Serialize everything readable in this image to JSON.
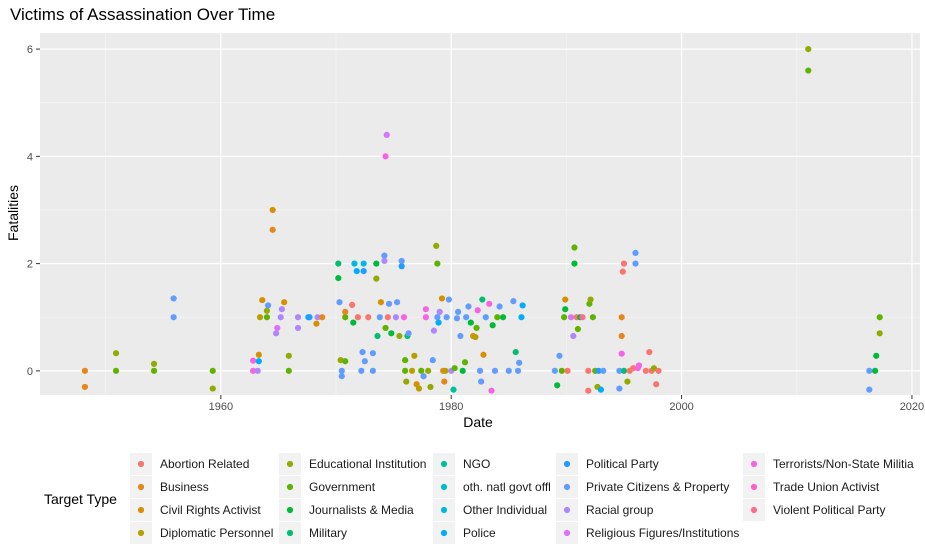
{
  "chart_data": {
    "type": "scatter",
    "title": "Victims of Assassination Over Time",
    "xlabel": "Date",
    "ylabel": "Fatalities",
    "xlim": [
      1944.3,
      2020.7
    ],
    "ylim": [
      -0.45,
      6.3
    ],
    "x_ticks": [
      1960,
      1980,
      2000,
      2020
    ],
    "y_ticks": [
      0,
      2,
      4,
      6
    ],
    "grid": true,
    "legend_position": "bottom",
    "legend_title": "Target Type",
    "categories": [
      {
        "name": "Abortion Related",
        "color": "#F8766D"
      },
      {
        "name": "Business",
        "color": "#E6861C"
      },
      {
        "name": "Civil Rights Activist",
        "color": "#D89000"
      },
      {
        "name": "Diplomatic Personnel",
        "color": "#B79F00"
      },
      {
        "name": "Educational Institution",
        "color": "#93AA00"
      },
      {
        "name": "Government",
        "color": "#5EB300"
      },
      {
        "name": "Journalists & Media",
        "color": "#00BA38"
      },
      {
        "name": "Military",
        "color": "#00BF74"
      },
      {
        "name": "NGO",
        "color": "#00C19F"
      },
      {
        "name": "oth. natl govt offl",
        "color": "#00BFC4"
      },
      {
        "name": "Other Individual",
        "color": "#00B9E3"
      },
      {
        "name": "Police",
        "color": "#00ADFA"
      },
      {
        "name": "Political Party",
        "color": "#1E9EFF"
      },
      {
        "name": "Private Citizens & Property",
        "color": "#619CFF"
      },
      {
        "name": "Racial group",
        "color": "#AE87FF"
      },
      {
        "name": "Religious Figures/Institutions",
        "color": "#DB72FB"
      },
      {
        "name": "Terrorists/Non-State Militia",
        "color": "#F564E3"
      },
      {
        "name": "Trade Union Activist",
        "color": "#FF61C3"
      },
      {
        "name": "Violent Political Party",
        "color": "#FF6C91"
      }
    ],
    "points": [
      [
        1948.2,
        0.0,
        "Business"
      ],
      [
        1948.2,
        -0.3,
        "Business"
      ],
      [
        1950.9,
        0.0,
        "Government"
      ],
      [
        1950.9,
        0.33,
        "Educational Institution"
      ],
      [
        1954.2,
        0.0,
        "Government"
      ],
      [
        1954.2,
        0.13,
        "Educational Institution"
      ],
      [
        1955.9,
        1.0,
        "Private Citizens & Property"
      ],
      [
        1955.9,
        1.35,
        "Private Citizens & Property"
      ],
      [
        1959.3,
        0.0,
        "Government"
      ],
      [
        1959.3,
        -0.33,
        "Educational Institution"
      ],
      [
        1962.8,
        0.0,
        "Terrorists/Non-State Militia"
      ],
      [
        1962.8,
        0.19,
        "Terrorists/Non-State Militia"
      ],
      [
        1963.2,
        0.0,
        "Racial group"
      ],
      [
        1963.3,
        0.18,
        "Police"
      ],
      [
        1963.3,
        0.3,
        "Civil Rights Activist"
      ],
      [
        1963.4,
        1.0,
        "Diplomatic Personnel"
      ],
      [
        1963.6,
        1.32,
        "Civil Rights Activist"
      ],
      [
        1964.0,
        1.0,
        "Government"
      ],
      [
        1964.0,
        1.12,
        "Educational Institution"
      ],
      [
        1964.1,
        1.22,
        "Private Citizens & Property"
      ],
      [
        1964.5,
        3.0,
        "Civil Rights Activist"
      ],
      [
        1964.5,
        2.63,
        "Business"
      ],
      [
        1964.8,
        0.7,
        "Racial group"
      ],
      [
        1964.9,
        0.8,
        "Religious Figures/Institutions"
      ],
      [
        1965.2,
        1.0,
        "Racial group"
      ],
      [
        1965.3,
        1.15,
        "Racial group"
      ],
      [
        1965.5,
        1.28,
        "Civil Rights Activist"
      ],
      [
        1965.9,
        0.0,
        "Government"
      ],
      [
        1965.9,
        0.28,
        "Educational Institution"
      ],
      [
        1966.7,
        0.8,
        "Racial group"
      ],
      [
        1966.7,
        1.0,
        "Racial group"
      ],
      [
        1967.6,
        1.0,
        "Police"
      ],
      [
        1967.7,
        1.0,
        "Political Party"
      ],
      [
        1968.3,
        0.88,
        "Civil Rights Activist"
      ],
      [
        1968.4,
        1.0,
        "Racial group"
      ],
      [
        1968.8,
        1.0,
        "Business"
      ],
      [
        1970.2,
        2.0,
        "Military"
      ],
      [
        1970.2,
        1.73,
        "Journalists & Media"
      ],
      [
        1970.3,
        1.28,
        "Private Citizens & Property"
      ],
      [
        1970.4,
        0.2,
        "Educational Institution"
      ],
      [
        1970.5,
        0.0,
        "Private Citizens & Property"
      ],
      [
        1970.5,
        -0.1,
        "Private Citizens & Property"
      ],
      [
        1970.8,
        0.18,
        "Government"
      ],
      [
        1970.8,
        1.0,
        "Government"
      ],
      [
        1970.8,
        1.1,
        "Business"
      ],
      [
        1971.4,
        1.23,
        "Abortion Related"
      ],
      [
        1971.6,
        2.0,
        "Other Individual"
      ],
      [
        1971.8,
        1.86,
        "Police"
      ],
      [
        1971.5,
        0.9,
        "Journalists & Media"
      ],
      [
        1971.9,
        1.0,
        "Abortion Related"
      ],
      [
        1972.4,
        2.0,
        "Other Individual"
      ],
      [
        1972.4,
        1.86,
        "Political Party"
      ],
      [
        1972.2,
        0.0,
        "Private Citizens & Property"
      ],
      [
        1972.3,
        0.35,
        "Private Citizens & Property"
      ],
      [
        1972.5,
        0.18,
        "Private Citizens & Property"
      ],
      [
        1972.8,
        1.0,
        "Abortion Related"
      ],
      [
        1973.2,
        0.0,
        "Private Citizens & Property"
      ],
      [
        1973.2,
        0.33,
        "Private Citizens & Property"
      ],
      [
        1973.5,
        2.0,
        "Journalists & Media"
      ],
      [
        1973.5,
        1.72,
        "Educational Institution"
      ],
      [
        1973.6,
        0.65,
        "Military"
      ],
      [
        1973.8,
        1.0,
        "Private Citizens & Property"
      ],
      [
        1973.9,
        1.28,
        "Civil Rights Activist"
      ],
      [
        1974.2,
        2.05,
        "Racial group"
      ],
      [
        1974.2,
        2.15,
        "Private Citizens & Property"
      ],
      [
        1974.4,
        4.4,
        "Religious Figures/Institutions"
      ],
      [
        1974.3,
        4.0,
        "Terrorists/Non-State Militia"
      ],
      [
        1974.3,
        0.8,
        "Government"
      ],
      [
        1974.5,
        1.0,
        "Abortion Related"
      ],
      [
        1974.6,
        1.25,
        "Private Citizens & Property"
      ],
      [
        1974.8,
        0.7,
        "Journalists & Media"
      ],
      [
        1975.2,
        1.0,
        "Racial group"
      ],
      [
        1975.3,
        1.28,
        "Private Citizens & Property"
      ],
      [
        1975.5,
        0.65,
        "Educational Institution"
      ],
      [
        1975.7,
        2.05,
        "Private Citizens & Property"
      ],
      [
        1975.7,
        1.95,
        "Political Party"
      ],
      [
        1975.9,
        1.0,
        "Terrorists/Non-State Militia"
      ],
      [
        1976.0,
        0.2,
        "Government"
      ],
      [
        1976.0,
        0.0,
        "Government"
      ],
      [
        1976.1,
        -0.2,
        "Educational Institution"
      ],
      [
        1976.2,
        0.65,
        "Military"
      ],
      [
        1976.3,
        0.7,
        "Private Citizens & Property"
      ],
      [
        1976.6,
        0.0,
        "Diplomatic Personnel"
      ],
      [
        1976.8,
        0.28,
        "Diplomatic Personnel"
      ],
      [
        1977.0,
        -0.25,
        "Civil Rights Activist"
      ],
      [
        1977.2,
        -0.33,
        "Diplomatic Personnel"
      ],
      [
        1977.4,
        0.0,
        "Government"
      ],
      [
        1977.6,
        -0.1,
        "Private Citizens & Property"
      ],
      [
        1977.8,
        1.0,
        "Terrorists/Non-State Militia"
      ],
      [
        1977.8,
        1.15,
        "Terrorists/Non-State Militia"
      ],
      [
        1978.0,
        0.0,
        "Educational Institution"
      ],
      [
        1978.2,
        -0.3,
        "Educational Institution"
      ],
      [
        1978.4,
        0.2,
        "Private Citizens & Property"
      ],
      [
        1978.5,
        0.75,
        "Racial group"
      ],
      [
        1978.8,
        1.0,
        "Private Citizens & Property"
      ],
      [
        1978.9,
        0.9,
        "Police"
      ],
      [
        1978.7,
        2.33,
        "Educational Institution"
      ],
      [
        1978.8,
        2.0,
        "Government"
      ],
      [
        1979.0,
        1.1,
        "Racial group"
      ],
      [
        1979.2,
        1.35,
        "Civil Rights Activist"
      ],
      [
        1979.3,
        0.0,
        "Business"
      ],
      [
        1979.4,
        -0.2,
        "Business"
      ],
      [
        1979.5,
        0.0,
        "Diplomatic Personnel"
      ],
      [
        1979.6,
        1.0,
        "Private Citizens & Property"
      ],
      [
        1979.8,
        1.33,
        "Private Citizens & Property"
      ],
      [
        1980.0,
        0.0,
        "Racial group"
      ],
      [
        1980.2,
        -0.35,
        "NGO"
      ],
      [
        1980.3,
        0.05,
        "Government"
      ],
      [
        1980.5,
        0.98,
        "Private Citizens & Property"
      ],
      [
        1980.6,
        1.1,
        "Private Citizens & Property"
      ],
      [
        1980.8,
        0.65,
        "Private Citizens & Property"
      ],
      [
        1981.0,
        0.0,
        "Journalists & Media"
      ],
      [
        1981.2,
        0.16,
        "Government"
      ],
      [
        1981.3,
        1.0,
        "Private Citizens & Property"
      ],
      [
        1981.5,
        1.2,
        "Private Citizens & Property"
      ],
      [
        1981.7,
        0.9,
        "Journalists & Media"
      ],
      [
        1981.9,
        0.65,
        "Civil Rights Activist"
      ],
      [
        1982.1,
        0.63,
        "Diplomatic Personnel"
      ],
      [
        1982.2,
        0.8,
        "Government"
      ],
      [
        1982.3,
        1.13,
        "Terrorists/Non-State Militia"
      ],
      [
        1982.5,
        0.0,
        "Private Citizens & Property"
      ],
      [
        1982.6,
        -0.2,
        "Private Citizens & Property"
      ],
      [
        1982.7,
        1.33,
        "Military"
      ],
      [
        1982.8,
        0.3,
        "Civil Rights Activist"
      ],
      [
        1983.0,
        1.0,
        "Private Citizens & Property"
      ],
      [
        1983.3,
        1.25,
        "Terrorists/Non-State Militia"
      ],
      [
        1983.5,
        -0.37,
        "Terrorists/Non-State Militia"
      ],
      [
        1983.6,
        0.85,
        "Journalists & Media"
      ],
      [
        1983.8,
        0.0,
        "Private Citizens & Property"
      ],
      [
        1984.0,
        1.0,
        "Government"
      ],
      [
        1984.2,
        1.2,
        "Private Citizens & Property"
      ],
      [
        1984.5,
        1.0,
        "Journalists & Media"
      ],
      [
        1985.0,
        0.0,
        "Private Citizens & Property"
      ],
      [
        1985.4,
        1.3,
        "Private Citizens & Property"
      ],
      [
        1985.6,
        0.35,
        "Military"
      ],
      [
        1985.8,
        0.0,
        "Private Citizens & Property"
      ],
      [
        1985.9,
        0.15,
        "Private Citizens & Property"
      ],
      [
        1986.1,
        1.0,
        "Police"
      ],
      [
        1986.2,
        1.22,
        "Police"
      ],
      [
        1989.0,
        0.0,
        "Private Citizens & Property"
      ],
      [
        1989.2,
        -0.27,
        "Journalists & Media"
      ],
      [
        1989.4,
        0.28,
        "Private Citizens & Property"
      ],
      [
        1989.6,
        0.0,
        "Government"
      ],
      [
        1989.8,
        1.0,
        "Government"
      ],
      [
        1989.9,
        1.15,
        "Journalists & Media"
      ],
      [
        1989.9,
        1.33,
        "Civil Rights Activist"
      ],
      [
        1990.1,
        0.0,
        "Abortion Related"
      ],
      [
        1990.4,
        1.0,
        "Religious Figures/Institutions"
      ],
      [
        1990.6,
        0.65,
        "Racial group"
      ],
      [
        1990.7,
        2.0,
        "Journalists & Media"
      ],
      [
        1990.7,
        2.3,
        "Government"
      ],
      [
        1990.9,
        1.0,
        "Abortion Related"
      ],
      [
        1991.0,
        0.78,
        "Government"
      ],
      [
        1991.2,
        1.0,
        "Journalists & Media"
      ],
      [
        1991.4,
        1.0,
        "Violent Political Party"
      ],
      [
        1991.9,
        0.0,
        "Abortion Related"
      ],
      [
        1991.9,
        -0.37,
        "Abortion Related"
      ],
      [
        1992.0,
        1.25,
        "Government"
      ],
      [
        1992.1,
        1.33,
        "Educational Institution"
      ],
      [
        1992.3,
        1.0,
        "Government"
      ],
      [
        1992.5,
        0.0,
        "Government"
      ],
      [
        1992.7,
        -0.3,
        "Educational Institution"
      ],
      [
        1992.8,
        0.0,
        "Political Party"
      ],
      [
        1993.0,
        -0.35,
        "Police"
      ],
      [
        1993.2,
        0.0,
        "Private Citizens & Property"
      ],
      [
        1994.8,
        1.0,
        "Business"
      ],
      [
        1994.8,
        0.65,
        "Business"
      ],
      [
        1994.9,
        1.85,
        "Abortion Related"
      ],
      [
        1995.0,
        2.0,
        "Abortion Related"
      ],
      [
        1994.8,
        0.32,
        "Terrorists/Non-State Militia"
      ],
      [
        1994.6,
        0.0,
        "Private Citizens & Property"
      ],
      [
        1994.6,
        -0.33,
        "Private Citizens & Property"
      ],
      [
        1995.0,
        0.0,
        "Military"
      ],
      [
        1995.3,
        -0.2,
        "Educational Institution"
      ],
      [
        1995.5,
        0.0,
        "Abortion Related"
      ],
      [
        1995.8,
        0.05,
        "Abortion Related"
      ],
      [
        1996.0,
        2.0,
        "Private Citizens & Property"
      ],
      [
        1996.0,
        2.2,
        "Private Citizens & Property"
      ],
      [
        1996.2,
        0.05,
        "Terrorists/Non-State Militia"
      ],
      [
        1996.3,
        0.1,
        "Terrorists/Non-State Militia"
      ],
      [
        1996.9,
        0.0,
        "Abortion Related"
      ],
      [
        1997.2,
        0.35,
        "Abortion Related"
      ],
      [
        1997.4,
        0.0,
        "Abortion Related"
      ],
      [
        1997.6,
        0.05,
        "Educational Institution"
      ],
      [
        1997.8,
        -0.25,
        "Abortion Related"
      ],
      [
        1998.0,
        0.0,
        "Abortion Related"
      ],
      [
        2011.0,
        6.0,
        "Educational Institution"
      ],
      [
        2011.0,
        5.6,
        "Government"
      ],
      [
        2016.3,
        0.0,
        "Private Citizens & Property"
      ],
      [
        2016.3,
        -0.35,
        "Private Citizens & Property"
      ],
      [
        2016.8,
        0.0,
        "Journalists & Media"
      ],
      [
        2016.9,
        0.28,
        "Journalists & Media"
      ],
      [
        2017.2,
        1.0,
        "Government"
      ],
      [
        2017.2,
        0.7,
        "Educational Institution"
      ]
    ]
  }
}
